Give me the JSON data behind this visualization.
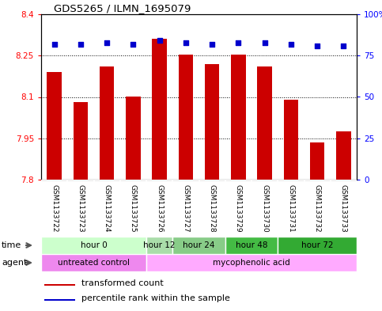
{
  "title": "GDS5265 / ILMN_1695079",
  "samples": [
    "GSM1133722",
    "GSM1133723",
    "GSM1133724",
    "GSM1133725",
    "GSM1133726",
    "GSM1133727",
    "GSM1133728",
    "GSM1133729",
    "GSM1133730",
    "GSM1133731",
    "GSM1133732",
    "GSM1133733"
  ],
  "bar_values": [
    8.19,
    8.08,
    8.21,
    8.1,
    8.31,
    8.255,
    8.22,
    8.255,
    8.21,
    8.09,
    7.935,
    7.975
  ],
  "percentile_values": [
    82,
    82,
    83,
    82,
    84,
    83,
    82,
    83,
    83,
    82,
    81,
    81
  ],
  "bar_color": "#CC0000",
  "dot_color": "#0000CC",
  "ylim_left": [
    7.8,
    8.4
  ],
  "ylim_right": [
    0,
    100
  ],
  "yticks_left": [
    7.8,
    7.95,
    8.1,
    8.25,
    8.4
  ],
  "yticks_right": [
    0,
    25,
    50,
    75,
    100
  ],
  "ytick_labels_left": [
    "7.8",
    "7.95",
    "8.1",
    "8.25",
    "8.4"
  ],
  "ytick_labels_right": [
    "0",
    "25",
    "50",
    "75",
    "100%"
  ],
  "hlines": [
    7.95,
    8.1,
    8.25
  ],
  "time_groups": [
    {
      "label": "hour 0",
      "start": 0,
      "end": 4,
      "color": "#ccffcc"
    },
    {
      "label": "hour 12",
      "start": 4,
      "end": 5,
      "color": "#aaddaa"
    },
    {
      "label": "hour 24",
      "start": 5,
      "end": 7,
      "color": "#88cc88"
    },
    {
      "label": "hour 48",
      "start": 7,
      "end": 9,
      "color": "#44bb44"
    },
    {
      "label": "hour 72",
      "start": 9,
      "end": 12,
      "color": "#33aa33"
    }
  ],
  "agent_groups": [
    {
      "label": "untreated control",
      "start": 0,
      "end": 4,
      "color": "#ee88ee"
    },
    {
      "label": "mycophenolic acid",
      "start": 4,
      "end": 12,
      "color": "#ffaaff"
    }
  ],
  "legend_red_label": "transformed count",
  "legend_blue_label": "percentile rank within the sample",
  "background_color": "#ffffff",
  "plot_bg_color": "#ffffff",
  "sample_bg_color": "#c8c8c8"
}
